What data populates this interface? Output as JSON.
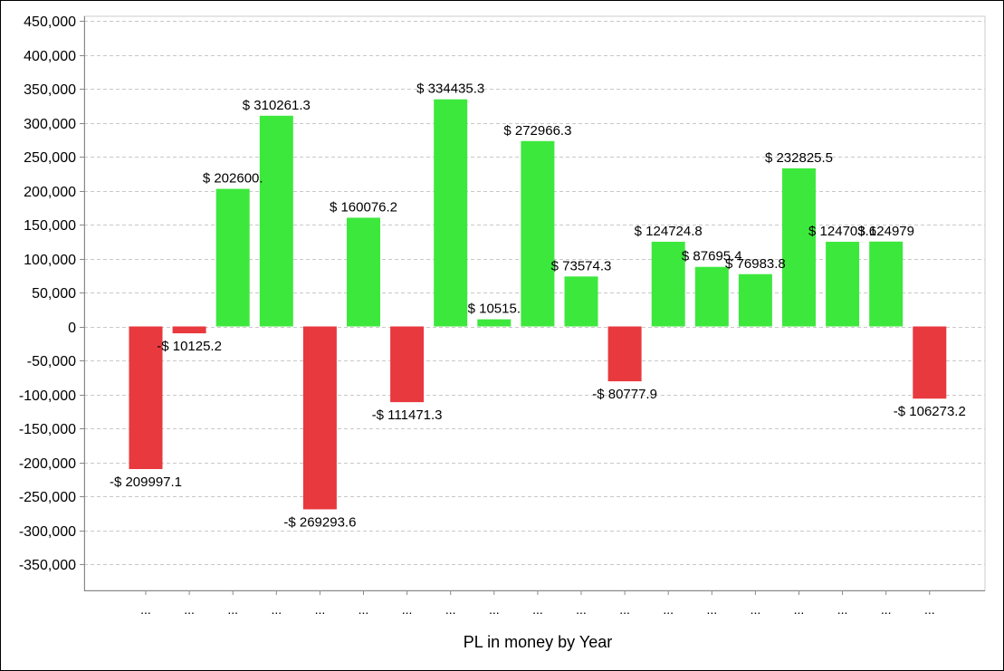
{
  "chart_data": {
    "type": "bar",
    "title": "",
    "xlabel": "PL in money by Year",
    "ylabel": "",
    "ylim": [
      -400000,
      450000
    ],
    "y_ticks": [
      450000,
      400000,
      350000,
      300000,
      250000,
      200000,
      150000,
      100000,
      50000,
      0,
      -50000,
      -100000,
      -150000,
      -200000,
      -250000,
      -300000,
      -350000
    ],
    "y_tick_labels": [
      "450,000",
      "400,000",
      "350,000",
      "300,000",
      "250,000",
      "200,000",
      "150,000",
      "100,000",
      "50,000",
      "0",
      "-50,000",
      "-100,000",
      "-150,000",
      "-200,000",
      "-250,000",
      "-300,000",
      "-350,000"
    ],
    "grid": true,
    "legend": "none",
    "categories": [
      "...",
      "...",
      "...",
      "...",
      "...",
      "...",
      "...",
      "...",
      "...",
      "...",
      "...",
      "...",
      "...",
      "...",
      "...",
      "...",
      "...",
      "...",
      "..."
    ],
    "values": [
      -209997.1,
      -10125.2,
      202600,
      310261.3,
      -269293.6,
      160076.2,
      -111471.3,
      334435.3,
      10515,
      272966.3,
      73574.3,
      -80777.9,
      124724.8,
      87695.4,
      76983.8,
      232825.5,
      124703.6,
      124979,
      -106273.2
    ],
    "data_labels": [
      "-$ 209997.1",
      "-$ 10125.2",
      "$ 202600.",
      "$ 310261.3",
      "-$ 269293.6",
      "$ 160076.2",
      "-$ 111471.3",
      "$ 334435.3",
      "$ 10515.",
      "$ 272966.3",
      "$ 73574.3",
      "-$ 80777.9",
      "$ 124724.8",
      "$ 87695.4",
      "$ 76983.8",
      "$ 232825.5",
      "$ 124703.6",
      "$ 124979",
      "-$ 106273.2"
    ],
    "colors": {
      "positive": "#3de83d",
      "negative": "#e8393e",
      "grid": "#c8c8c8",
      "axis": "#888888"
    }
  }
}
